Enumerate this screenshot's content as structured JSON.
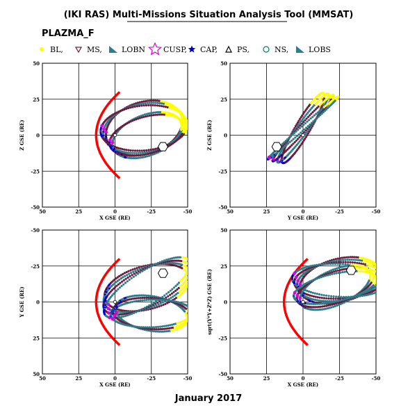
{
  "title": "(IKI RAS) Multi-Missions Situation Analysis Tool (MMSAT)",
  "dataset": "PLAZMA_F",
  "footer": "January 2017",
  "colors": {
    "bl": "#ffff00",
    "ms": "#6b1c3a",
    "lobn": "#2e7d8c",
    "cusp": "#e000e0",
    "cap": "#0000cc",
    "ps": "#000000",
    "ns": "#008060",
    "lobs": "#2e7d8c",
    "magnetopause": "#ff0000"
  },
  "legend": [
    {
      "label": "BL,",
      "icon": "filled-circle-icon",
      "color": "#ffff00"
    },
    {
      "label": "MS,",
      "icon": "down-triangle-icon",
      "color": "#6b1c3a"
    },
    {
      "label": "LOBN",
      "icon": "corner-triangle-icon",
      "color": "#2e7d8c"
    },
    {
      "label": "CUSP,",
      "icon": "star-icon",
      "color": "#e000e0"
    },
    {
      "label": "CAP,",
      "icon": "filled-star-icon",
      "color": "#0000cc"
    },
    {
      "label": "PS,",
      "icon": "up-triangle-icon",
      "color": "#000000"
    },
    {
      "label": "NS,",
      "icon": "open-circle-icon",
      "color": "#008060"
    },
    {
      "label": "LOBS",
      "icon": "corner-triangle-icon",
      "color": "#2e7d8c"
    }
  ],
  "chart_data": [
    {
      "type": "scatter",
      "panel": "top-left",
      "xlabel": "X GSE (RE)",
      "ylabel": "Z GSE (RE)",
      "xlim": [
        50,
        -50
      ],
      "ylim": [
        -50,
        50
      ],
      "xticks": [
        "50",
        "25",
        "0",
        "-25",
        "-50"
      ],
      "yticks": [
        "-50",
        "-25",
        "0",
        "25",
        "50"
      ],
      "orbits": [
        {
          "center": [
            -20,
            5
          ],
          "rx": 27,
          "ry": 18,
          "angle": -18,
          "count": 3
        },
        {
          "center": [
            -22,
            0
          ],
          "rx": 25,
          "ry": 14,
          "angle": -22,
          "count": 2
        }
      ],
      "magnetopause": true
    },
    {
      "type": "scatter",
      "panel": "top-right",
      "xlabel": "Y GSE (RE)",
      "ylabel": "Z GSE (RE)",
      "xlim": [
        50,
        -50
      ],
      "ylim": [
        -50,
        50
      ],
      "xticks": [
        "50",
        "25",
        "0",
        "-25",
        "-50"
      ],
      "yticks": [
        "-50",
        "-25",
        "0",
        "25",
        "50"
      ],
      "orbits": [
        {
          "center": [
            0,
            5
          ],
          "rx": 28,
          "ry": 5,
          "angle": -60,
          "count": 4
        }
      ],
      "magnetopause": false
    },
    {
      "type": "scatter",
      "panel": "bottom-left",
      "xlabel": "X GSE (RE)",
      "ylabel": "Y GSE (RE)",
      "xlim": [
        50,
        -50
      ],
      "ylim": [
        50,
        -50
      ],
      "xticks": [
        "50",
        "25",
        "0",
        "-25",
        "-50"
      ],
      "yticks": [
        "50",
        "25",
        "0",
        "-25",
        "-50"
      ],
      "orbits": [
        {
          "center": [
            -22,
            -10
          ],
          "rx": 30,
          "ry": 15,
          "angle": 15,
          "count": 4
        },
        {
          "center": [
            -25,
            8
          ],
          "rx": 25,
          "ry": 12,
          "angle": -10,
          "count": 3
        }
      ],
      "magnetopause": true
    },
    {
      "type": "scatter",
      "panel": "bottom-right",
      "xlabel": "X GSE (RE)",
      "ylabel": "sqrt(Y*Y+Z*Z) GSE (RE)",
      "xlim": [
        50,
        -50
      ],
      "ylim": [
        -50,
        50
      ],
      "xticks": [
        "50",
        "25",
        "0",
        "-25",
        "-50"
      ],
      "yticks": [
        "-50",
        "-25",
        "0",
        "25",
        "50"
      ],
      "orbits": [
        {
          "center": [
            -25,
            15
          ],
          "rx": 28,
          "ry": 15,
          "angle": -15,
          "count": 4
        },
        {
          "center": [
            -22,
            10
          ],
          "rx": 26,
          "ry": 12,
          "angle": -25,
          "count": 3
        }
      ],
      "magnetopause": true
    }
  ]
}
